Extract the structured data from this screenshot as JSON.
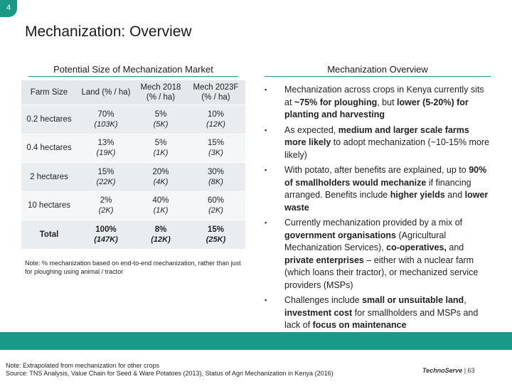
{
  "page_number": "4",
  "title": "Mechanization: Overview",
  "left": {
    "heading": "Potential Size of Mechanization Market",
    "table": {
      "header": [
        [
          "Farm Size"
        ],
        [
          "Land (% / ha)"
        ],
        [
          "Mech 2018",
          "(% / ha)"
        ],
        [
          "Mech 2023F",
          "(% / ha)"
        ]
      ],
      "rows": [
        [
          [
            "0.2 hectares"
          ],
          [
            "70%",
            "(103K)"
          ],
          [
            "5%",
            "(5K)"
          ],
          [
            "10%",
            "(12K)"
          ]
        ],
        [
          [
            "0.4 hectares"
          ],
          [
            "13%",
            "(19K)"
          ],
          [
            "5%",
            "(1K)"
          ],
          [
            "15%",
            "(3K)"
          ]
        ],
        [
          [
            "2 hectares"
          ],
          [
            "15%",
            "(22K)"
          ],
          [
            "20%",
            "(4K)"
          ],
          [
            "30%",
            "(8K)"
          ]
        ],
        [
          [
            "10 hectares"
          ],
          [
            "2%",
            "(2K)"
          ],
          [
            "40%",
            "(1K)"
          ],
          [
            "60%",
            "(2K)"
          ]
        ],
        [
          [
            "Total"
          ],
          [
            "100%",
            "(147K)"
          ],
          [
            "8%",
            "(12K)"
          ],
          [
            "15%",
            "(25K)"
          ]
        ]
      ],
      "bold_last_row": true
    },
    "note": "Note: % mechanization based on end-to-end mechanization, rather than just for ploughing using animal / tractor"
  },
  "right": {
    "heading": "Mechanization Overview",
    "bullets": [
      [
        {
          "text": "Mechanization across crops in Kenya currently sits at ",
          "bold": false
        },
        {
          "text": "~75% for ploughing",
          "bold": true
        },
        {
          "text": ", but ",
          "bold": false
        },
        {
          "text": "lower (5-20%) for planting and harvesting",
          "bold": true
        }
      ],
      [
        {
          "text": " As expected, ",
          "bold": false
        },
        {
          "text": "medium and larger scale farms more likely",
          "bold": true
        },
        {
          "text": " to adopt mechanization (~10-15% more likely)",
          "bold": false
        }
      ],
      [
        {
          "text": "With potato, after benefits are explained, up to ",
          "bold": false
        },
        {
          "text": "90% of smallholders would mechanize",
          "bold": true
        },
        {
          "text": " if financing arranged. Benefits include ",
          "bold": false
        },
        {
          "text": "higher yields",
          "bold": true
        },
        {
          "text": " and ",
          "bold": false
        },
        {
          "text": "lower waste",
          "bold": true
        }
      ],
      [
        {
          "text": "Currently mechanization provided by a mix of ",
          "bold": false
        },
        {
          "text": "government organisations",
          "bold": true
        },
        {
          "text": " (Agricultural Mechanization Services), ",
          "bold": false
        },
        {
          "text": "co-operatives,",
          "bold": true
        },
        {
          "text": " and ",
          "bold": false
        },
        {
          "text": "private enterprises",
          "bold": true
        },
        {
          "text": " – either with a nuclear farm (which loans their tractor), or mechanized service providers (MSPs)",
          "bold": false
        }
      ],
      [
        {
          "text": "Challenges include ",
          "bold": false
        },
        {
          "text": "small or unsuitable land",
          "bold": true
        },
        {
          "text": ", ",
          "bold": false
        },
        {
          "text": "investment cost",
          "bold": true
        },
        {
          "text": " for smallholders and MSPs and lack of ",
          "bold": false
        },
        {
          "text": "focus on maintenance",
          "bold": true
        }
      ]
    ]
  },
  "footer": {
    "note": "Note: Extrapolated from mechanization for other crops",
    "source": "Source: TNS Analysis, Value Chain for Seed & Ware Potatoes (2013), Status of Agri Mechanization in Kenya (2016)",
    "logo": "TechnoServe",
    "page": "63"
  }
}
